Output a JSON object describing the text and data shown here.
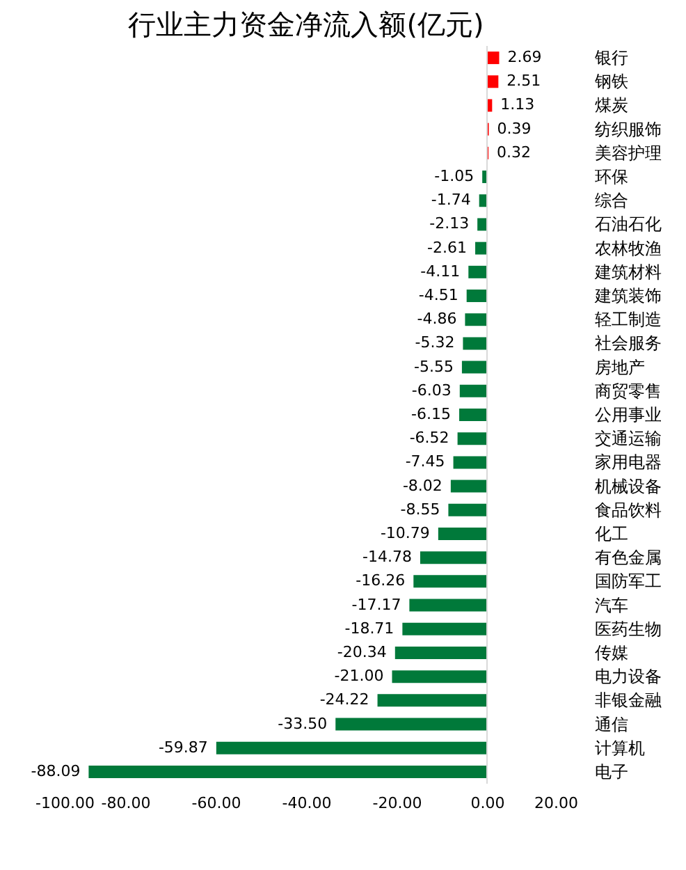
{
  "chart_data": {
    "type": "bar",
    "orientation": "horizontal",
    "title": "行业主力资金净流入额(亿元)",
    "categories": [
      "银行",
      "钢铁",
      "煤炭",
      "纺织服饰",
      "美容护理",
      "环保",
      "综合",
      "石油石化",
      "农林牧渔",
      "建筑材料",
      "建筑装饰",
      "轻工制造",
      "社会服务",
      "房地产",
      "商贸零售",
      "公用事业",
      "交通运输",
      "家用电器",
      "机械设备",
      "食品饮料",
      "化工",
      "有色金属",
      "国防军工",
      "汽车",
      "医药生物",
      "传媒",
      "电力设备",
      "非银金融",
      "通信",
      "计算机",
      "电子"
    ],
    "values": [
      2.69,
      2.51,
      1.13,
      0.39,
      0.32,
      -1.05,
      -1.74,
      -2.13,
      -2.61,
      -4.11,
      -4.51,
      -4.86,
      -5.32,
      -5.55,
      -6.03,
      -6.15,
      -6.52,
      -7.45,
      -8.02,
      -8.55,
      -10.79,
      -14.78,
      -16.26,
      -17.17,
      -18.71,
      -20.34,
      -21.0,
      -24.22,
      -33.5,
      -59.87,
      -88.09
    ],
    "value_labels": [
      "2.69",
      "2.51",
      "1.13",
      "0.39",
      "0.32",
      "-1.05",
      "-1.74",
      "-2.13",
      "-2.61",
      "-4.11",
      "-4.51",
      "-4.86",
      "-5.32",
      "-5.55",
      "-6.03",
      "-6.15",
      "-6.52",
      "-7.45",
      "-8.02",
      "-8.55",
      "-10.79",
      "-14.78",
      "-16.26",
      "-17.17",
      "-18.71",
      "-20.34",
      "-21.00",
      "-24.22",
      "-33.50",
      "-59.87",
      "-88.09"
    ],
    "colors": [
      "#ff0000",
      "#ff0000",
      "#ff0000",
      "#ff0000",
      "#ff0000",
      "#00793a",
      "#00793a",
      "#00793a",
      "#00793a",
      "#00793a",
      "#00793a",
      "#00793a",
      "#00793a",
      "#00793a",
      "#00793a",
      "#00793a",
      "#00793a",
      "#00793a",
      "#00793a",
      "#00793a",
      "#00793a",
      "#00793a",
      "#00793a",
      "#00793a",
      "#00793a",
      "#00793a",
      "#00793a",
      "#00793a",
      "#00793a",
      "#00793a",
      "#00793a"
    ],
    "xlim": [
      -100,
      20
    ],
    "xticks": [
      {
        "value": -100,
        "label": "-100.00"
      },
      {
        "value": -80,
        "label": "-80.00"
      },
      {
        "value": -60,
        "label": "-60.00"
      },
      {
        "value": -40,
        "label": "-40.00"
      },
      {
        "value": -20,
        "label": "-20.00"
      },
      {
        "value": 0,
        "label": "0.00"
      },
      {
        "value": 20,
        "label": "20.00"
      }
    ],
    "ref_lines": [
      {
        "axis": "x",
        "value": 0,
        "color": "#d9d9d9"
      }
    ],
    "grid": false
  }
}
